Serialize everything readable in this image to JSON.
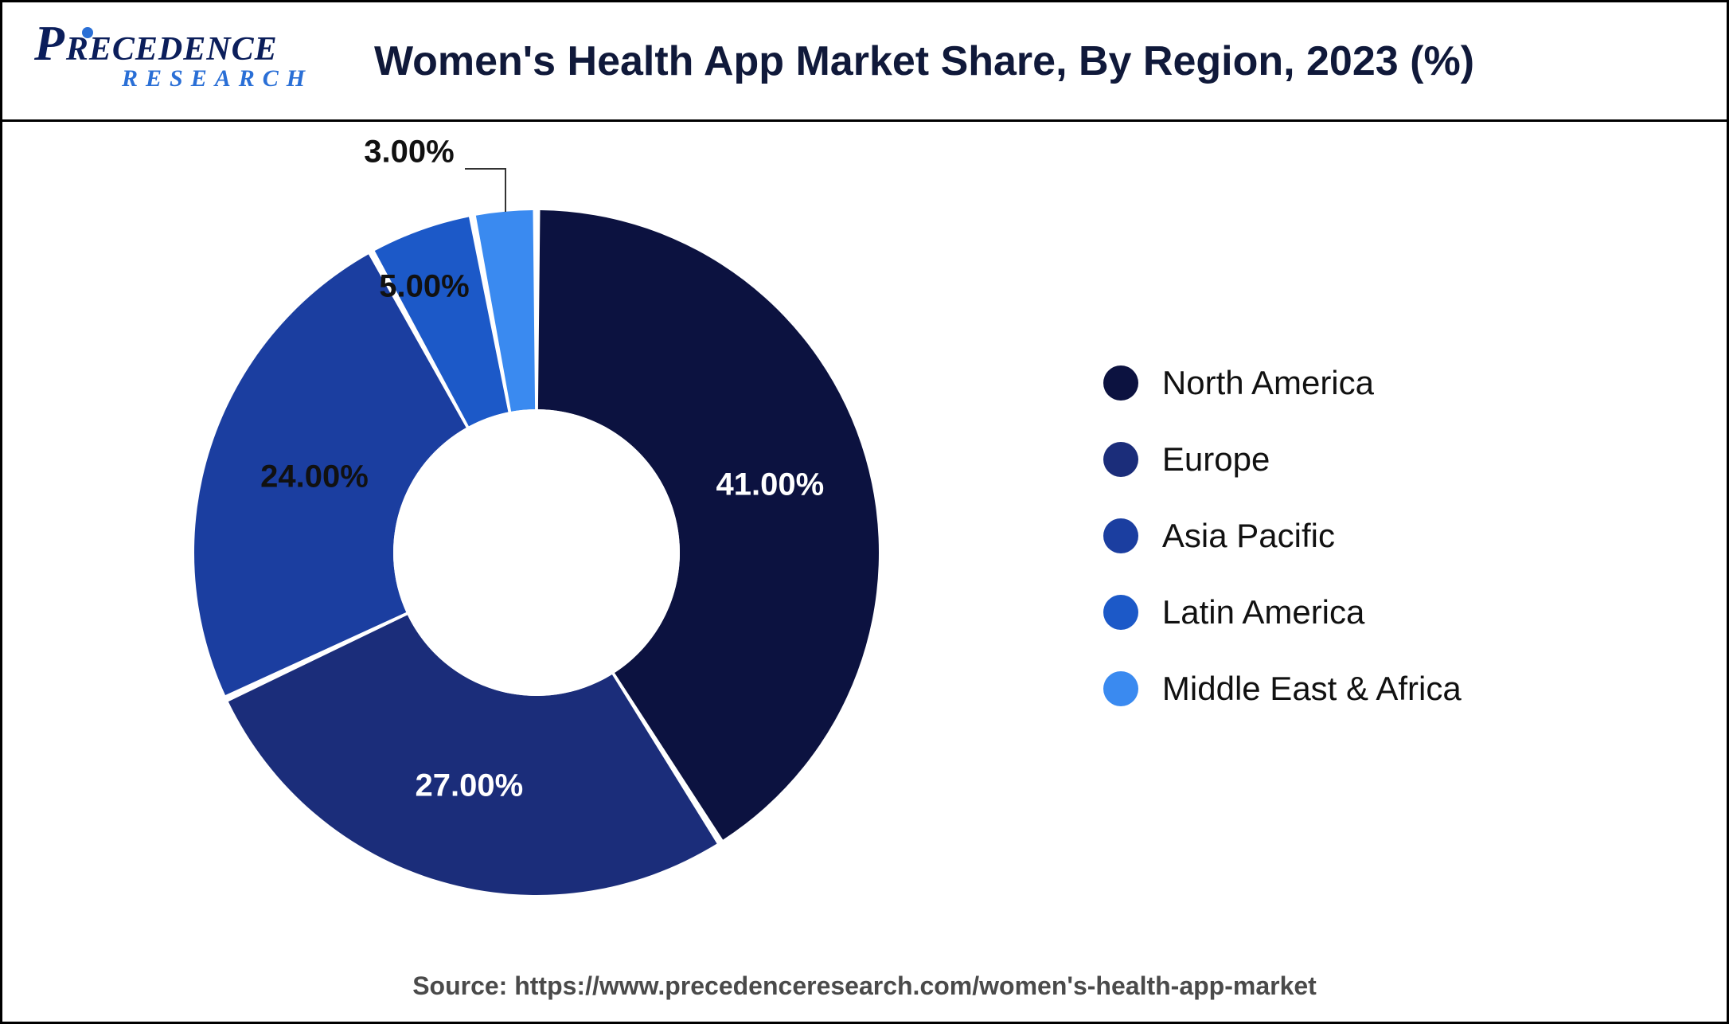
{
  "logo": {
    "main_first_letter": "P",
    "main_rest": "RECEDENCE",
    "sub": "RESEARCH"
  },
  "title": "Women's Health App Market Share, By Region, 2023 (%)",
  "chart": {
    "type": "donut",
    "start_angle_deg": -90,
    "outer_radius": 430,
    "inner_radius": 180,
    "center_fill": "#ffffff",
    "background_color": "#ffffff",
    "label_fontsize": 40,
    "label_fontweight": 700,
    "slices": [
      {
        "label": "North America",
        "value": 41.0,
        "display": "41.00%",
        "color": "#0c1240",
        "label_color": "#ffffff",
        "label_inside": true
      },
      {
        "label": "Europe",
        "value": 27.0,
        "display": "27.00%",
        "color": "#1b2d7a",
        "label_color": "#ffffff",
        "label_inside": true
      },
      {
        "label": "Asia Pacific",
        "value": 24.0,
        "display": "24.00%",
        "color": "#1b3ea0",
        "label_color": "#111111",
        "label_inside": false
      },
      {
        "label": "Latin America",
        "value": 5.0,
        "display": "5.00%",
        "color": "#1c59c8",
        "label_color": "#111111",
        "label_inside": false
      },
      {
        "label": "Middle East & Africa",
        "value": 3.0,
        "display": "3.00%",
        "color": "#3a8af0",
        "label_color": "#111111",
        "label_inside": false
      }
    ],
    "slice_gap_deg": 1.2,
    "legend": {
      "swatch_shape": "circle",
      "swatch_size": 44,
      "fontsize": 42,
      "gap": 48,
      "text_color": "#111111"
    }
  },
  "source": "Source: https://www.precedenceresearch.com/women's-health-app-market",
  "colors": {
    "frame_border": "#000000",
    "title_color": "#10193a",
    "logo_primary": "#0b1e5b",
    "logo_secondary": "#2a6fd6",
    "source_color": "#4a4a4a"
  }
}
